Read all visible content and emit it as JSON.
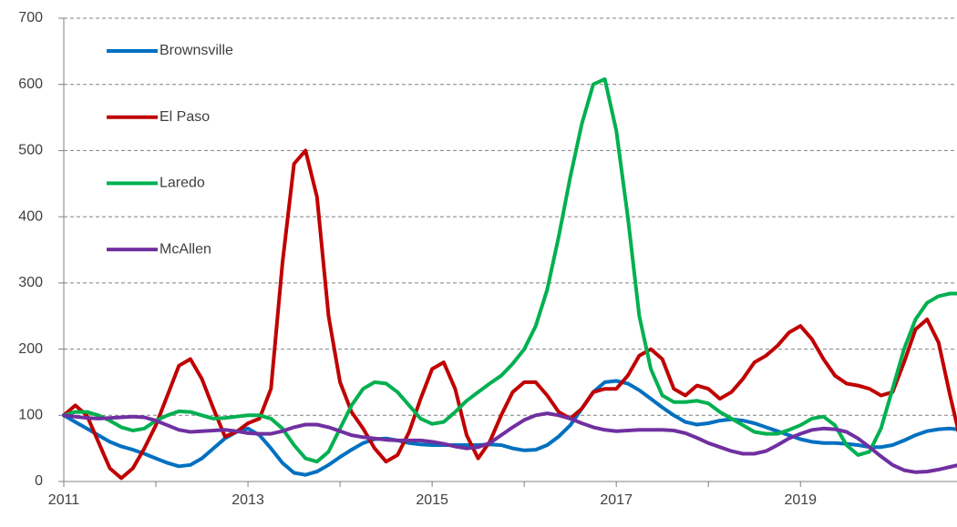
{
  "chart_data": {
    "type": "line",
    "x": [
      2011,
      2011.125,
      2011.25,
      2011.375,
      2011.5,
      2011.625,
      2011.75,
      2011.875,
      2012,
      2012.125,
      2012.25,
      2012.375,
      2012.5,
      2012.625,
      2012.75,
      2012.875,
      2013,
      2013.125,
      2013.25,
      2013.375,
      2013.5,
      2013.625,
      2013.75,
      2013.875,
      2014,
      2014.125,
      2014.25,
      2014.375,
      2014.5,
      2014.625,
      2014.75,
      2014.875,
      2015,
      2015.125,
      2015.25,
      2015.375,
      2015.5,
      2015.625,
      2015.75,
      2015.875,
      2016,
      2016.125,
      2016.25,
      2016.375,
      2016.5,
      2016.625,
      2016.75,
      2016.875,
      2017,
      2017.125,
      2017.25,
      2017.375,
      2017.5,
      2017.625,
      2017.75,
      2017.875,
      2018,
      2018.125,
      2018.25,
      2018.375,
      2018.5,
      2018.625,
      2018.75,
      2018.875,
      2019,
      2019.125,
      2019.25,
      2019.375,
      2019.5,
      2019.625,
      2019.75,
      2019.875,
      2020,
      2020.125,
      2020.25,
      2020.375,
      2020.5,
      2020.625,
      2020.75
    ],
    "series": [
      {
        "name": "Brownsville",
        "color": "#0070c0",
        "values": [
          100,
          90,
          80,
          70,
          60,
          53,
          48,
          42,
          35,
          28,
          23,
          25,
          35,
          50,
          65,
          75,
          80,
          70,
          50,
          28,
          13,
          10,
          15,
          25,
          37,
          48,
          58,
          64,
          65,
          62,
          58,
          56,
          55,
          55,
          55,
          55,
          55,
          56,
          55,
          50,
          47,
          48,
          55,
          68,
          85,
          110,
          135,
          150,
          152,
          148,
          138,
          125,
          112,
          100,
          90,
          86,
          88,
          92,
          94,
          92,
          88,
          82,
          76,
          70,
          64,
          60,
          58,
          58,
          57,
          55,
          52,
          52,
          55,
          62,
          70,
          76,
          79,
          80,
          78
        ]
      },
      {
        "name": "El Paso",
        "color": "#c00000",
        "values": [
          100,
          115,
          100,
          60,
          20,
          5,
          20,
          50,
          85,
          130,
          175,
          185,
          155,
          110,
          68,
          75,
          88,
          95,
          140,
          330,
          480,
          500,
          430,
          250,
          150,
          105,
          80,
          50,
          30,
          40,
          75,
          125,
          170,
          180,
          140,
          70,
          35,
          60,
          100,
          135,
          150,
          150,
          130,
          105,
          95,
          110,
          135,
          140,
          140,
          160,
          190,
          200,
          185,
          140,
          130,
          145,
          140,
          125,
          135,
          155,
          180,
          190,
          205,
          225,
          235,
          215,
          185,
          160,
          148,
          145,
          140,
          130,
          135,
          180,
          230,
          245,
          210,
          130,
          55
        ]
      },
      {
        "name": "Laredo",
        "color": "#00b050",
        "values": [
          100,
          105,
          105,
          100,
          92,
          82,
          77,
          80,
          92,
          100,
          106,
          105,
          100,
          95,
          96,
          98,
          100,
          100,
          95,
          80,
          55,
          35,
          30,
          45,
          80,
          115,
          140,
          150,
          148,
          135,
          115,
          95,
          87,
          90,
          105,
          122,
          135,
          148,
          160,
          178,
          200,
          235,
          290,
          370,
          460,
          540,
          600,
          608,
          530,
          400,
          250,
          170,
          130,
          120,
          120,
          122,
          118,
          105,
          95,
          85,
          75,
          72,
          72,
          78,
          85,
          95,
          98,
          85,
          55,
          40,
          45,
          80,
          140,
          200,
          245,
          270,
          280,
          284,
          284
        ]
      },
      {
        "name": "McAllen",
        "color": "#7030a0",
        "values": [
          100,
          98,
          96,
          95,
          96,
          97,
          98,
          97,
          92,
          85,
          78,
          75,
          76,
          77,
          78,
          76,
          73,
          72,
          72,
          76,
          82,
          86,
          86,
          82,
          76,
          70,
          67,
          65,
          63,
          62,
          62,
          62,
          60,
          57,
          53,
          50,
          52,
          58,
          70,
          82,
          93,
          100,
          103,
          100,
          95,
          88,
          82,
          78,
          76,
          77,
          78,
          78,
          78,
          77,
          73,
          66,
          58,
          52,
          46,
          42,
          42,
          46,
          55,
          65,
          72,
          78,
          80,
          79,
          75,
          65,
          52,
          38,
          25,
          17,
          14,
          15,
          18,
          22,
          26
        ]
      }
    ],
    "xlim": [
      2011,
      2020.7
    ],
    "xticks": [
      2011,
      2013,
      2015,
      2017,
      2019
    ],
    "ylim": [
      0,
      700
    ],
    "yticks": [
      0,
      100,
      200,
      300,
      400,
      500,
      600,
      700
    ],
    "grid": true,
    "legend": "upper left"
  }
}
